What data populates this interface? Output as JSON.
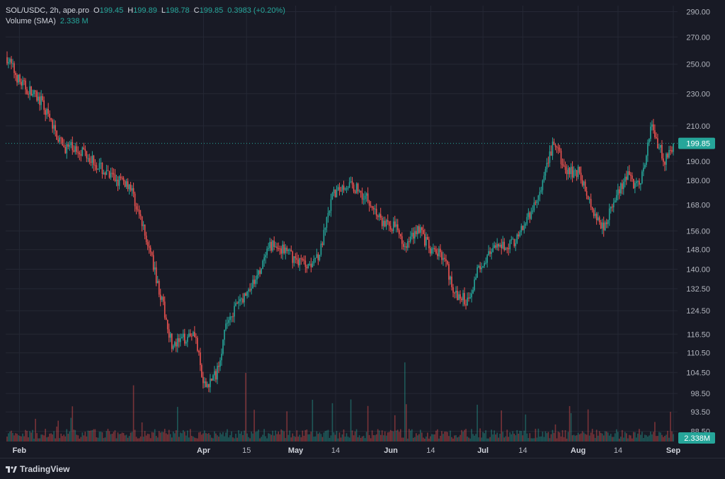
{
  "header": {
    "symbol": "SOL/USDC, 2h, ape.pro",
    "open_label": "O",
    "open": "199.45",
    "high_label": "H",
    "high": "199.89",
    "low_label": "L",
    "low": "198.78",
    "close_label": "C",
    "close": "199.85",
    "change": "0.3983 (+0.20%)",
    "volume_label": "Volume (SMA)",
    "volume_value": "2.338 M"
  },
  "footer": {
    "brand": "TradingView"
  },
  "colors": {
    "up": "#26a69a",
    "down": "#ef5350",
    "background": "#181a25",
    "grid": "#252835"
  },
  "chart_data": {
    "type": "candlestick",
    "scale": "log",
    "price_axis_ticks": [
      "290.00",
      "270.00",
      "250.00",
      "230.00",
      "210.00",
      "199.85",
      "190.00",
      "180.00",
      "168.00",
      "156.00",
      "148.00",
      "140.00",
      "132.50",
      "124.50",
      "116.50",
      "110.50",
      "104.50",
      "98.50",
      "93.50",
      "88.50"
    ],
    "time_axis_ticks": [
      "Feb",
      "Apr",
      "15",
      "May",
      "14",
      "Jun",
      "14",
      "Jul",
      "14",
      "Aug",
      "14",
      "Sep"
    ],
    "last_price": 199.85,
    "last_volume_label": "2.338M",
    "ylim": [
      86,
      295
    ],
    "x": [
      "2024-01-28",
      "2024-02-01",
      "2024-02-08",
      "2024-02-15",
      "2024-02-22",
      "2024-03-01",
      "2024-03-08",
      "2024-03-15",
      "2024-03-22",
      "2024-03-29",
      "2024-04-01",
      "2024-04-05",
      "2024-04-09",
      "2024-04-13",
      "2024-04-16",
      "2024-04-19",
      "2024-04-23",
      "2024-04-27",
      "2024-05-01",
      "2024-05-05",
      "2024-05-09",
      "2024-05-13",
      "2024-05-17",
      "2024-05-21",
      "2024-05-25",
      "2024-05-29",
      "2024-06-02",
      "2024-06-06",
      "2024-06-10",
      "2024-06-14",
      "2024-06-18",
      "2024-06-22",
      "2024-06-26",
      "2024-06-30",
      "2024-07-04",
      "2024-07-08",
      "2024-07-12",
      "2024-07-16",
      "2024-07-20",
      "2024-07-24",
      "2024-07-28",
      "2024-08-01",
      "2024-08-05",
      "2024-08-09",
      "2024-08-13",
      "2024-08-17",
      "2024-08-21",
      "2024-08-25",
      "2024-08-29",
      "2024-09-01"
    ],
    "close": [
      255,
      238,
      225,
      198,
      196,
      182,
      178,
      145,
      112,
      118,
      100,
      104,
      122,
      128,
      132,
      138,
      150,
      148,
      144,
      142,
      147,
      172,
      178,
      176,
      170,
      160,
      158,
      150,
      158,
      147,
      146,
      130,
      128,
      142,
      147,
      150,
      152,
      162,
      175,
      201,
      184,
      185,
      168,
      158,
      170,
      182,
      176,
      210,
      190,
      199.85
    ]
  }
}
